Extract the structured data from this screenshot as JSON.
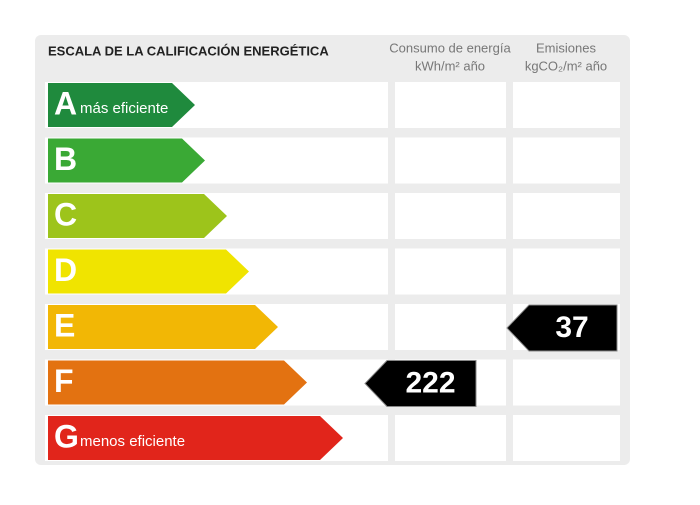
{
  "header": {
    "title": "ESCALA DE LA CALIFICACIÓN ENERGÉTICA",
    "columns": [
      {
        "line1": "Consumo de energía",
        "line2": "kWh/m² año"
      },
      {
        "line1": "Emisiones",
        "line2": "kgCO₂/m² año"
      }
    ]
  },
  "ratings": [
    {
      "letter": "A",
      "note": "más eficiente",
      "color": "#1f8a3d"
    },
    {
      "letter": "B",
      "color": "#3aa935"
    },
    {
      "letter": "C",
      "color": "#9dc41b"
    },
    {
      "letter": "D",
      "color": "#f0e400"
    },
    {
      "letter": "E",
      "color": "#f2b705"
    },
    {
      "letter": "F",
      "color": "#e37211"
    },
    {
      "letter": "G",
      "note": "menos eficiente",
      "color": "#e1251b"
    }
  ],
  "consumption": {
    "rating": "F",
    "value": 222
  },
  "emissions": {
    "rating": "E",
    "value": 37
  }
}
